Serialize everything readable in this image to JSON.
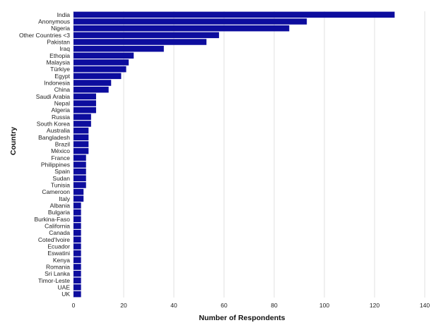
{
  "chart_data": {
    "type": "bar",
    "orientation": "horizontal",
    "categories": [
      "India",
      "Anonymous",
      "Nigeria",
      "Other Countries <3",
      "Pakistan",
      "Iraq",
      "Ethopia",
      "Malaysia",
      "Türkiye",
      "Egypt",
      "Indonesia",
      "China",
      "Saudi Arabia",
      "Nepal",
      "Algeria",
      "Russia",
      "South Korea",
      "Australia",
      "Bangladesh",
      "Brazil",
      "México",
      "France",
      "Philippines",
      "Spain",
      "Sudan",
      "Tunisia",
      "Cameroon",
      "Italy",
      "Albania",
      "Bulgaria",
      "Burkina-Faso",
      "California",
      "Canada",
      "Coted'Ivoire",
      "Ecuador",
      "Eswatini",
      "Kenya",
      "Romania",
      "Sri Lanka",
      "Timor-Leste",
      "UAE",
      "UK"
    ],
    "values": [
      128,
      93,
      86,
      58,
      53,
      36,
      24,
      22,
      21,
      19,
      15,
      14,
      9,
      9,
      9,
      7,
      7,
      6,
      6,
      6,
      6,
      5,
      5,
      5,
      5,
      5,
      4,
      4,
      3,
      3,
      3,
      3,
      3,
      3,
      3,
      3,
      3,
      3,
      3,
      3,
      3,
      3
    ],
    "xlabel": "Number of Respondents",
    "ylabel": "Country",
    "xlim": [
      0,
      140
    ],
    "xticks": [
      "0",
      "20",
      "40",
      "60",
      "80",
      "100",
      "120",
      "140"
    ],
    "grid": true,
    "bar_color": "#0d0d9e"
  }
}
